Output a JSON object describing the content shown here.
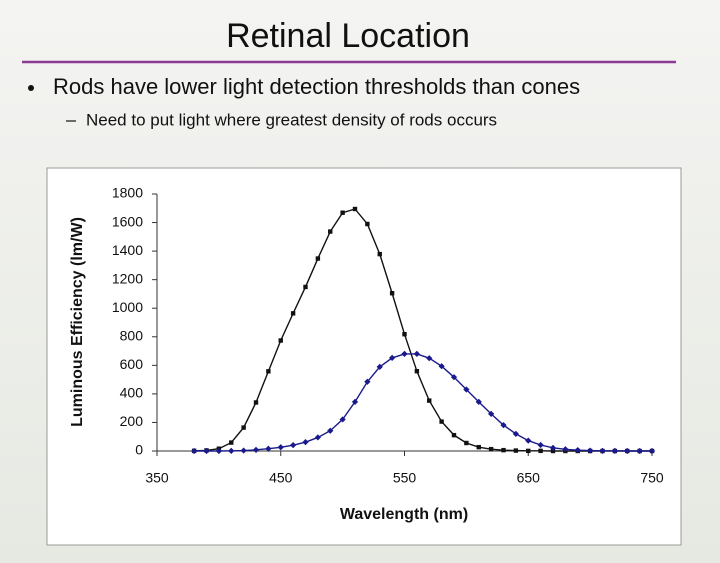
{
  "slide": {
    "title": "Retinal Location",
    "bullet": "Rods have lower light detection thresholds than cones",
    "sub_bullet": "Need to put light where greatest density of rods occurs"
  },
  "chart_data": {
    "type": "line",
    "x_label": "Wavelength (nm)",
    "y_label": "Luminous Efficiency (lm/W)",
    "x": [
      380,
      390,
      400,
      410,
      420,
      430,
      440,
      450,
      460,
      470,
      480,
      490,
      500,
      510,
      520,
      530,
      540,
      550,
      560,
      570,
      580,
      590,
      600,
      610,
      620,
      630,
      640,
      650,
      660,
      670,
      680,
      690,
      700,
      710,
      720,
      730,
      740,
      750
    ],
    "series": [
      {
        "color": "#111111",
        "values": [
          1,
          4,
          16,
          59,
          164,
          340,
          558,
          774,
          964,
          1149,
          1348,
          1537,
          1669,
          1695,
          1590,
          1379,
          1105,
          818,
          559,
          353,
          206,
          111,
          56,
          27,
          13,
          6,
          3,
          1,
          1,
          0,
          0,
          0,
          0,
          0,
          0,
          0,
          0,
          0
        ]
      },
      {
        "color": "#1a1a8c",
        "values": [
          0,
          0,
          0,
          1,
          3,
          8,
          16,
          26,
          41,
          62,
          95,
          142,
          221,
          344,
          485,
          589,
          652,
          680,
          680,
          650,
          594,
          517,
          431,
          344,
          260,
          181,
          120,
          73,
          42,
          22,
          12,
          6,
          3,
          1,
          1,
          0,
          0,
          0
        ]
      }
    ],
    "xlim": [
      350,
      750
    ],
    "xticks": [
      350,
      450,
      550,
      650,
      750
    ],
    "ylim": [
      0,
      1800
    ],
    "yticks": [
      0,
      200,
      400,
      600,
      800,
      1000,
      1200,
      1400,
      1600,
      1800
    ],
    "grid": false
  }
}
